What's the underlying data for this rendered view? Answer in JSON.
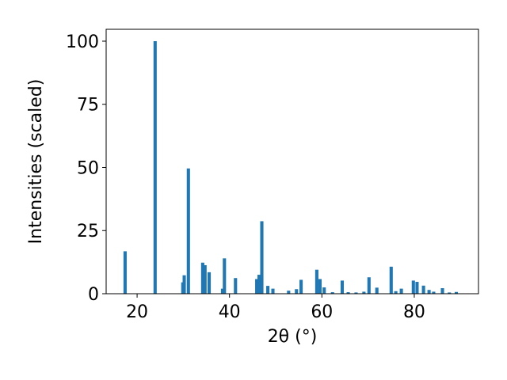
{
  "chart_data": {
    "type": "bar",
    "x": [
      17.4,
      23.9,
      29.9,
      30.2,
      31.1,
      34.2,
      34.7,
      35.6,
      38.5,
      38.9,
      41.3,
      45.9,
      46.4,
      47.0,
      48.3,
      49.4,
      52.8,
      54.5,
      55.5,
      58.9,
      59.6,
      60.5,
      62.3,
      64.4,
      65.7,
      67.4,
      69.1,
      70.2,
      71.9,
      75.0,
      76.0,
      77.2,
      79.8,
      80.6,
      82.0,
      83.2,
      84.2,
      86.1,
      87.6,
      89.1
    ],
    "values": [
      16.8,
      100,
      4.5,
      7.3,
      49.6,
      12.3,
      11.3,
      8.5,
      2,
      14,
      6.2,
      5.8,
      7.5,
      28.7,
      3.1,
      2,
      1.2,
      1.8,
      5.5,
      9.5,
      5.8,
      2.5,
      0.6,
      5.2,
      0.6,
      0.5,
      0.8,
      6.5,
      2.4,
      10.7,
      1,
      2,
      5.2,
      4.7,
      3.2,
      1.5,
      0.8,
      2.2,
      0.5,
      0.7
    ],
    "color": "#1f77b4",
    "xlabel": "2θ (°)",
    "ylabel": "Intensities (scaled)",
    "xlim": [
      13.3,
      93.9
    ],
    "ylim": [
      0,
      104.7
    ],
    "xticks": [
      20,
      40,
      60,
      80
    ],
    "yticks": [
      0,
      25,
      50,
      75,
      100
    ]
  }
}
